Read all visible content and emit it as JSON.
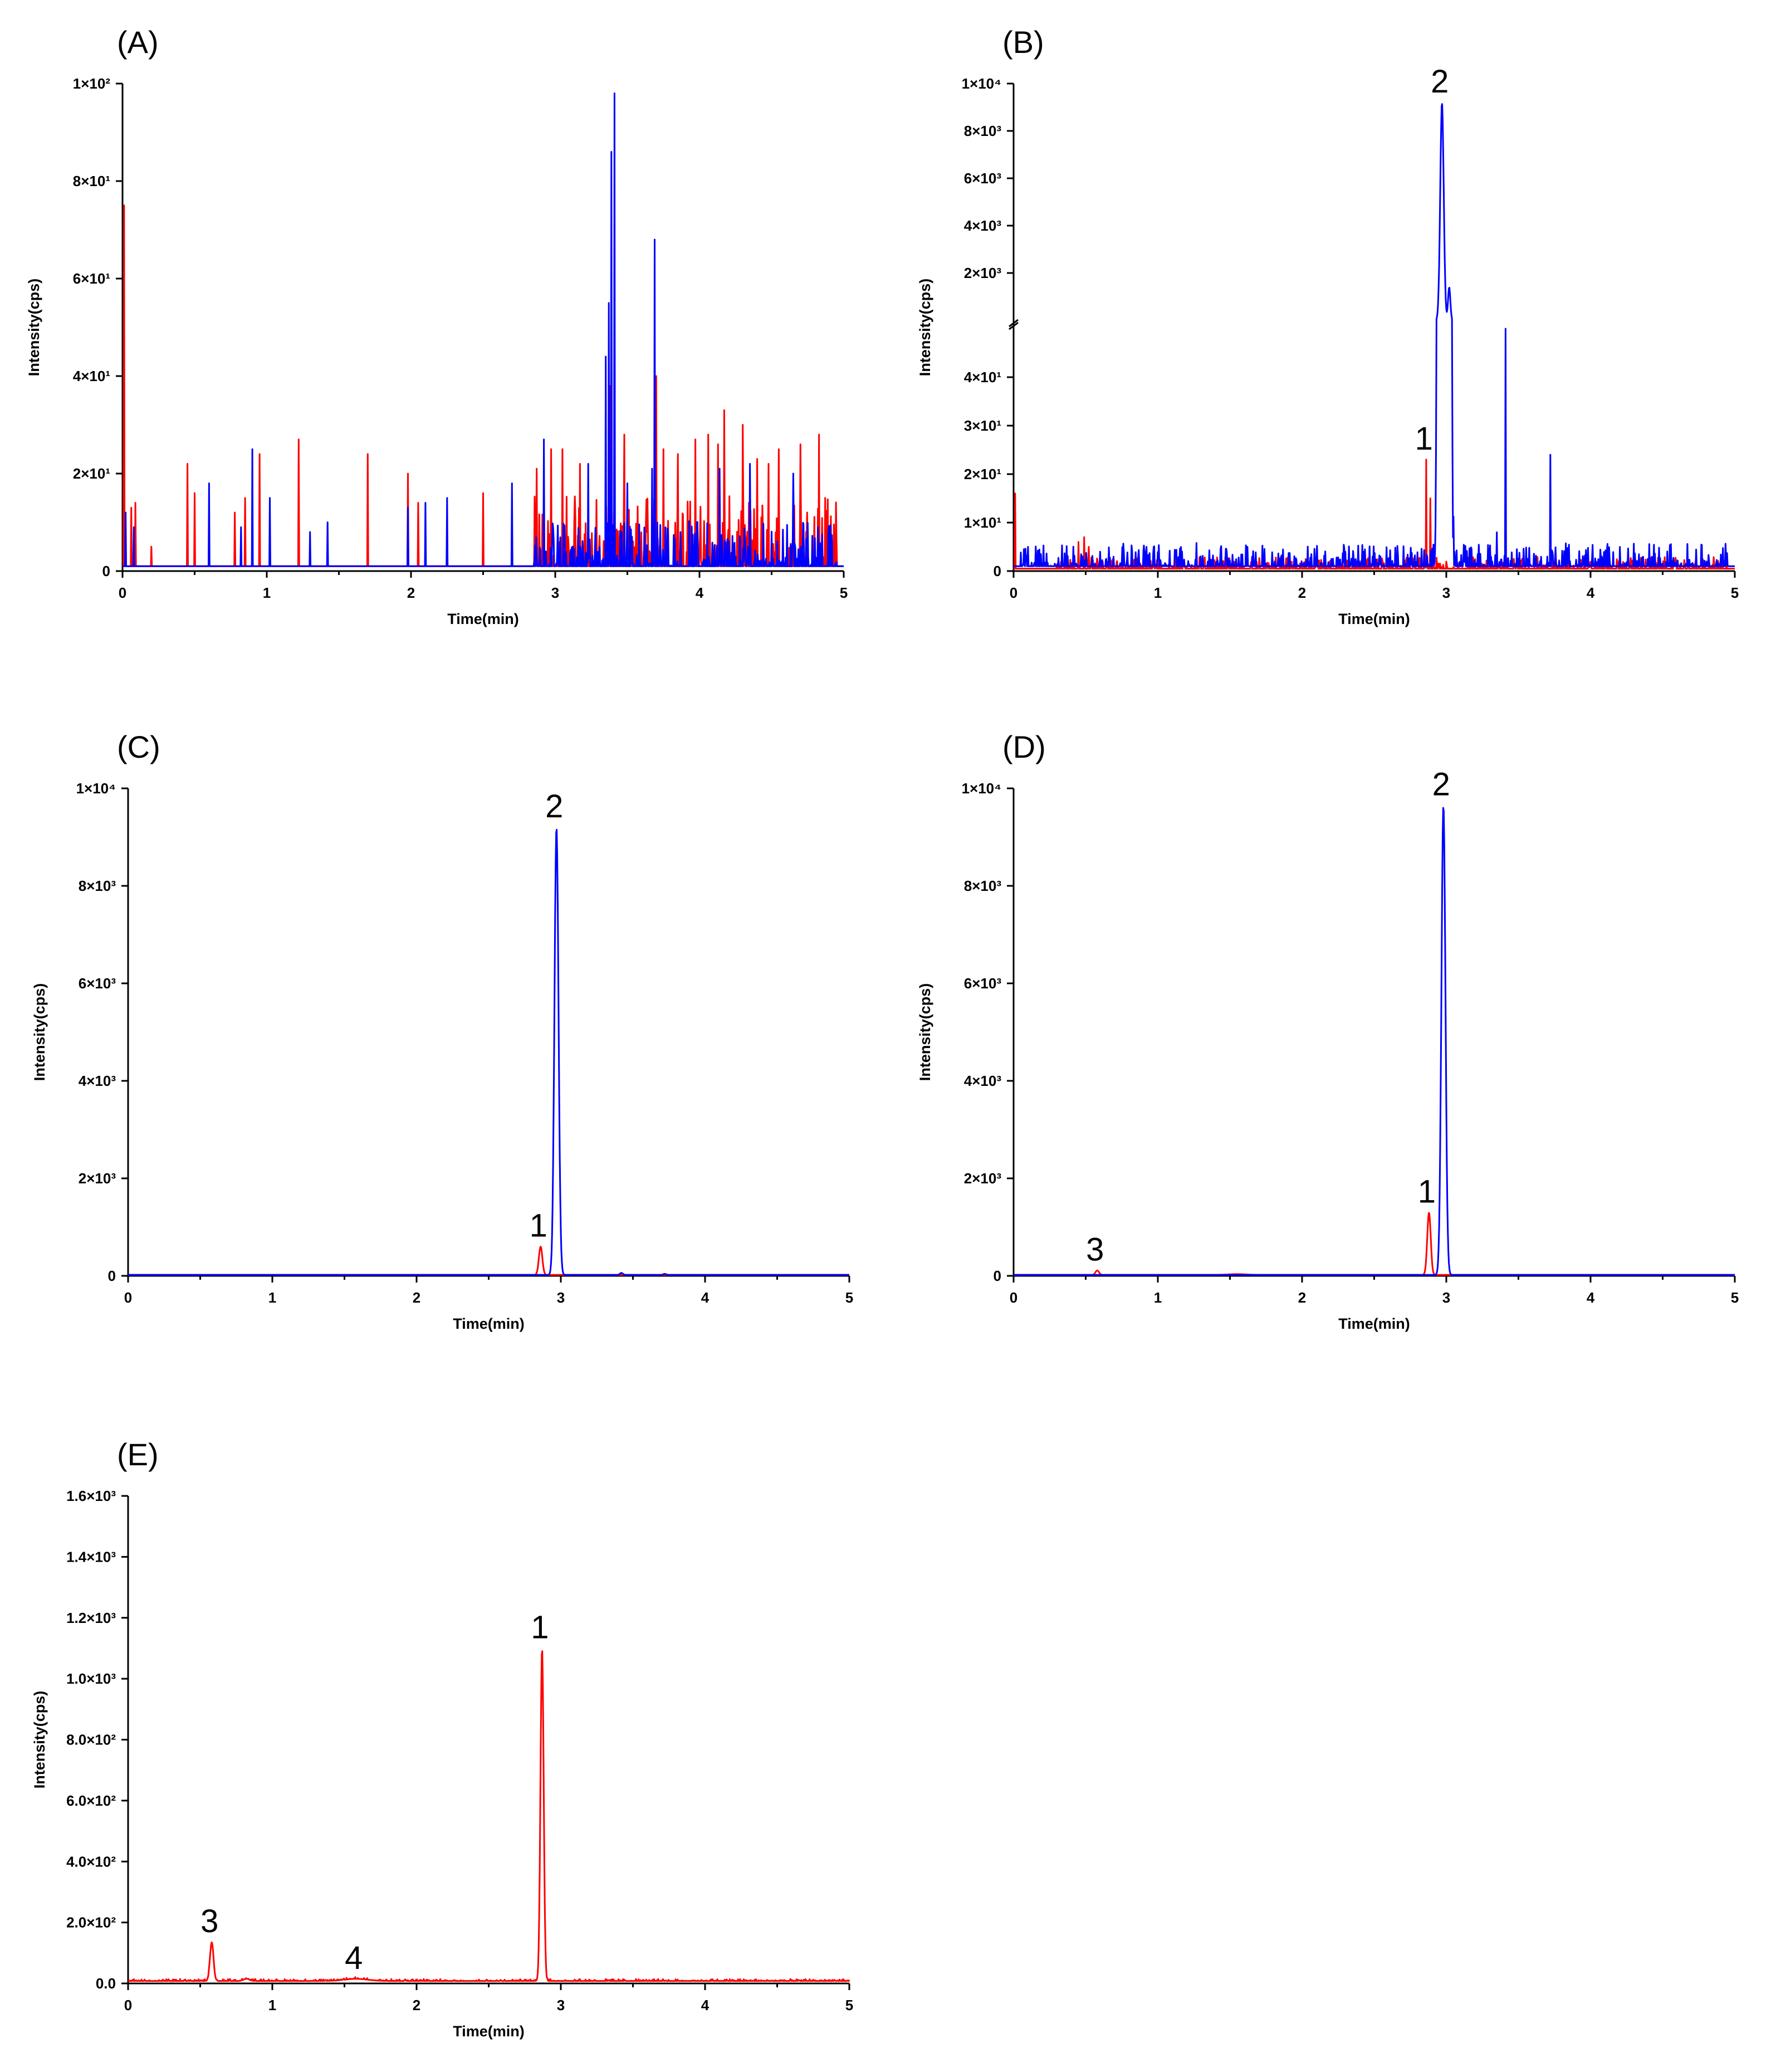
{
  "colors": {
    "series_red": "#ff0000",
    "series_blue": "#0000ff",
    "axis": "#000000"
  },
  "chart_data": [
    {
      "type": "line",
      "panel": "(A)",
      "xlabel": "Time(min)",
      "ylabel": "Intensity(cps)",
      "xlim": [
        0,
        5
      ],
      "ylim": [
        0,
        100
      ],
      "x_ticks": [
        "0",
        "1",
        "2",
        "3",
        "4",
        "5"
      ],
      "y_ticks": [
        {
          "value": 0,
          "label": "0"
        },
        {
          "value": 20,
          "label": "2×10¹"
        },
        {
          "value": 40,
          "label": "4×10¹"
        },
        {
          "value": 60,
          "label": "6×10¹"
        },
        {
          "value": 80,
          "label": "8×10¹"
        },
        {
          "value": 100,
          "label": "1×10²"
        }
      ],
      "series": [
        {
          "name": "red channel",
          "color": "#ff0000",
          "baseline": 1,
          "spikes": [
            [
              0.01,
              75
            ],
            [
              0.06,
              13
            ],
            [
              0.09,
              14
            ],
            [
              0.2,
              5
            ],
            [
              0.45,
              22
            ],
            [
              0.5,
              16
            ],
            [
              0.78,
              12
            ],
            [
              0.85,
              15
            ],
            [
              0.95,
              24
            ],
            [
              1.22,
              27
            ],
            [
              1.7,
              24
            ],
            [
              1.98,
              20
            ],
            [
              2.05,
              14
            ],
            [
              2.5,
              16
            ],
            [
              2.87,
              21
            ],
            [
              2.97,
              25
            ],
            [
              3.05,
              25
            ],
            [
              3.17,
              22
            ],
            [
              3.38,
              38
            ],
            [
              3.48,
              28
            ],
            [
              3.7,
              40
            ],
            [
              3.75,
              25
            ],
            [
              3.85,
              24
            ],
            [
              3.97,
              27
            ],
            [
              4.06,
              28
            ],
            [
              4.13,
              26
            ],
            [
              4.17,
              33
            ],
            [
              4.3,
              30
            ],
            [
              4.4,
              23
            ],
            [
              4.48,
              22
            ],
            [
              4.55,
              25
            ],
            [
              4.7,
              26
            ],
            [
              4.83,
              28
            ],
            [
              4.87,
              15
            ]
          ],
          "noise_region": [
            2.85,
            4.95
          ],
          "noise_level": 9
        },
        {
          "name": "blue channel",
          "color": "#0000ff",
          "baseline": 1,
          "spikes": [
            [
              0.02,
              12
            ],
            [
              0.08,
              9
            ],
            [
              0.6,
              18
            ],
            [
              0.82,
              9
            ],
            [
              0.9,
              25
            ],
            [
              1.02,
              15
            ],
            [
              1.3,
              8
            ],
            [
              1.42,
              10
            ],
            [
              1.98,
              13
            ],
            [
              2.1,
              14
            ],
            [
              2.25,
              15
            ],
            [
              2.7,
              18
            ],
            [
              2.92,
              27
            ],
            [
              3.23,
              22
            ],
            [
              3.35,
              44
            ],
            [
              3.37,
              55
            ],
            [
              3.39,
              86
            ],
            [
              3.41,
              98
            ],
            [
              3.5,
              18
            ],
            [
              3.67,
              21
            ],
            [
              3.69,
              68
            ],
            [
              4.14,
              21
            ],
            [
              4.35,
              22
            ],
            [
              4.65,
              20
            ],
            [
              4.82,
              9
            ]
          ],
          "noise_region": [
            2.85,
            4.95
          ],
          "noise_level": 6
        }
      ]
    },
    {
      "type": "line",
      "panel": "(B)",
      "xlabel": "Time(min)",
      "ylabel": "Intensity(cps)",
      "xlim": [
        0,
        5
      ],
      "ylim": [
        0,
        10000
      ],
      "axis_break": {
        "lower": [
          0,
          50
        ],
        "upper": [
          0,
          10000
        ]
      },
      "x_ticks": [
        "0",
        "1",
        "2",
        "3",
        "4",
        "5"
      ],
      "y_ticks": [
        {
          "value": 0,
          "label": "0",
          "segment": "lower"
        },
        {
          "value": 10,
          "label": "1×10¹",
          "segment": "lower"
        },
        {
          "value": 20,
          "label": "2×10¹",
          "segment": "lower"
        },
        {
          "value": 30,
          "label": "3×10¹",
          "segment": "lower"
        },
        {
          "value": 40,
          "label": "4×10¹",
          "segment": "lower"
        },
        {
          "value": 2000,
          "label": "2×10³",
          "segment": "upper"
        },
        {
          "value": 4000,
          "label": "4×10³",
          "segment": "upper"
        },
        {
          "value": 6000,
          "label": "6×10³",
          "segment": "upper"
        },
        {
          "value": 8000,
          "label": "8×10³",
          "segment": "upper"
        },
        {
          "value": 10000,
          "label": "1×10⁴",
          "segment": "upper"
        }
      ],
      "series": [
        {
          "name": "red channel",
          "color": "#ff0000",
          "baseline": 0.5,
          "spikes": [
            [
              0.01,
              16
            ],
            [
              0.45,
              6
            ],
            [
              0.49,
              7
            ],
            [
              0.52,
              5
            ],
            [
              2.86,
              23
            ],
            [
              2.89,
              15
            ]
          ],
          "noise_region": [
            0.3,
            4.95
          ],
          "noise_level": 1.5
        },
        {
          "name": "blue channel",
          "color": "#0000ff",
          "baseline": 1,
          "spikes": [
            [
              0.1,
              5
            ],
            [
              0.6,
              4
            ],
            [
              0.92,
              5
            ],
            [
              1.62,
              5
            ],
            [
              2.3,
              4
            ],
            [
              3.05,
              10
            ],
            [
              3.35,
              8
            ],
            [
              3.41,
              50
            ],
            [
              3.72,
              24
            ]
          ],
          "peaks": [
            {
              "x": 2.97,
              "y": 9200,
              "width": 0.012
            },
            {
              "x": 3.02,
              "y": 1400,
              "width": 0.008
            }
          ],
          "noise_region": [
            0.05,
            4.95
          ],
          "noise_level": 3
        }
      ],
      "annotations": [
        {
          "label": "1",
          "x": 2.86,
          "y": 23
        },
        {
          "label": "2",
          "x": 2.97,
          "y": 9200
        }
      ]
    },
    {
      "type": "line",
      "panel": "(C)",
      "xlabel": "Time(min)",
      "ylabel": "Intensity(cps)",
      "xlim": [
        0,
        5
      ],
      "ylim": [
        0,
        10000
      ],
      "x_ticks": [
        "0",
        "1",
        "2",
        "3",
        "4",
        "5"
      ],
      "y_ticks": [
        {
          "value": 0,
          "label": "0"
        },
        {
          "value": 2000,
          "label": "2×10³"
        },
        {
          "value": 4000,
          "label": "4×10³"
        },
        {
          "value": 6000,
          "label": "6×10³"
        },
        {
          "value": 8000,
          "label": "8×10³"
        },
        {
          "value": 10000,
          "label": "1×10⁴"
        }
      ],
      "series": [
        {
          "name": "red channel",
          "color": "#ff0000",
          "baseline": 20,
          "peaks": [
            {
              "x": 2.86,
              "y": 600,
              "width": 0.012
            }
          ]
        },
        {
          "name": "blue channel",
          "color": "#0000ff",
          "baseline": 20,
          "peaks": [
            {
              "x": 2.97,
              "y": 9200,
              "width": 0.014
            },
            {
              "x": 3.42,
              "y": 60,
              "width": 0.01
            },
            {
              "x": 3.72,
              "y": 40,
              "width": 0.01
            }
          ]
        }
      ],
      "annotations": [
        {
          "label": "1",
          "x": 2.86,
          "y": 600
        },
        {
          "label": "2",
          "x": 2.97,
          "y": 9200
        }
      ]
    },
    {
      "type": "line",
      "panel": "(D)",
      "xlabel": "Time(min)",
      "ylabel": "Intensity(cps)",
      "xlim": [
        0,
        5
      ],
      "ylim": [
        0,
        10000
      ],
      "x_ticks": [
        "0",
        "1",
        "2",
        "3",
        "4",
        "5"
      ],
      "y_ticks": [
        {
          "value": 0,
          "label": "0"
        },
        {
          "value": 2000,
          "label": "2×10³"
        },
        {
          "value": 4000,
          "label": "4×10³"
        },
        {
          "value": 6000,
          "label": "6×10³"
        },
        {
          "value": 8000,
          "label": "8×10³"
        },
        {
          "value": 10000,
          "label": "1×10⁴"
        }
      ],
      "series": [
        {
          "name": "red channel",
          "color": "#ff0000",
          "baseline": 20,
          "peaks": [
            {
              "x": 0.58,
              "y": 110,
              "width": 0.012
            },
            {
              "x": 1.55,
              "y": 35,
              "width": 0.06
            },
            {
              "x": 2.88,
              "y": 1300,
              "width": 0.012
            }
          ]
        },
        {
          "name": "blue channel",
          "color": "#0000ff",
          "baseline": 20,
          "peaks": [
            {
              "x": 2.98,
              "y": 9650,
              "width": 0.014
            }
          ]
        }
      ],
      "annotations": [
        {
          "label": "1",
          "x": 2.88,
          "y": 1300
        },
        {
          "label": "2",
          "x": 2.98,
          "y": 9650
        },
        {
          "label": "3",
          "x": 0.58,
          "y": 110
        }
      ]
    },
    {
      "type": "line",
      "panel": "(E)",
      "xlabel": "Time(min)",
      "ylabel": "Intensity(cps)",
      "xlim": [
        0,
        5
      ],
      "ylim": [
        0,
        1600
      ],
      "x_ticks": [
        "0",
        "1",
        "2",
        "3",
        "4",
        "5"
      ],
      "y_ticks": [
        {
          "value": 0,
          "label": "0.0"
        },
        {
          "value": 200,
          "label": "2.0×10²"
        },
        {
          "value": 400,
          "label": "4.0×10²"
        },
        {
          "value": 600,
          "label": "6.0×10²"
        },
        {
          "value": 800,
          "label": "8.0×10²"
        },
        {
          "value": 1000,
          "label": "1.0×10³"
        },
        {
          "value": 1200,
          "label": "1.2×10³"
        },
        {
          "value": 1400,
          "label": "1.4×10³"
        },
        {
          "value": 1600,
          "label": "1.6×10³"
        }
      ],
      "series": [
        {
          "name": "red channel",
          "color": "#ff0000",
          "baseline": 8,
          "peaks": [
            {
              "x": 0.58,
              "y": 135,
              "width": 0.012
            },
            {
              "x": 0.82,
              "y": 15,
              "width": 0.02
            },
            {
              "x": 1.58,
              "y": 15,
              "width": 0.08
            },
            {
              "x": 2.87,
              "y": 1100,
              "width": 0.011
            }
          ],
          "noise_region": [
            0.0,
            5.0
          ],
          "noise_level": 4
        }
      ],
      "annotations": [
        {
          "label": "1",
          "x": 2.87,
          "y": 1100
        },
        {
          "label": "3",
          "x": 0.58,
          "y": 135
        },
        {
          "label": "4",
          "x": 1.58,
          "y": 15
        }
      ]
    }
  ]
}
